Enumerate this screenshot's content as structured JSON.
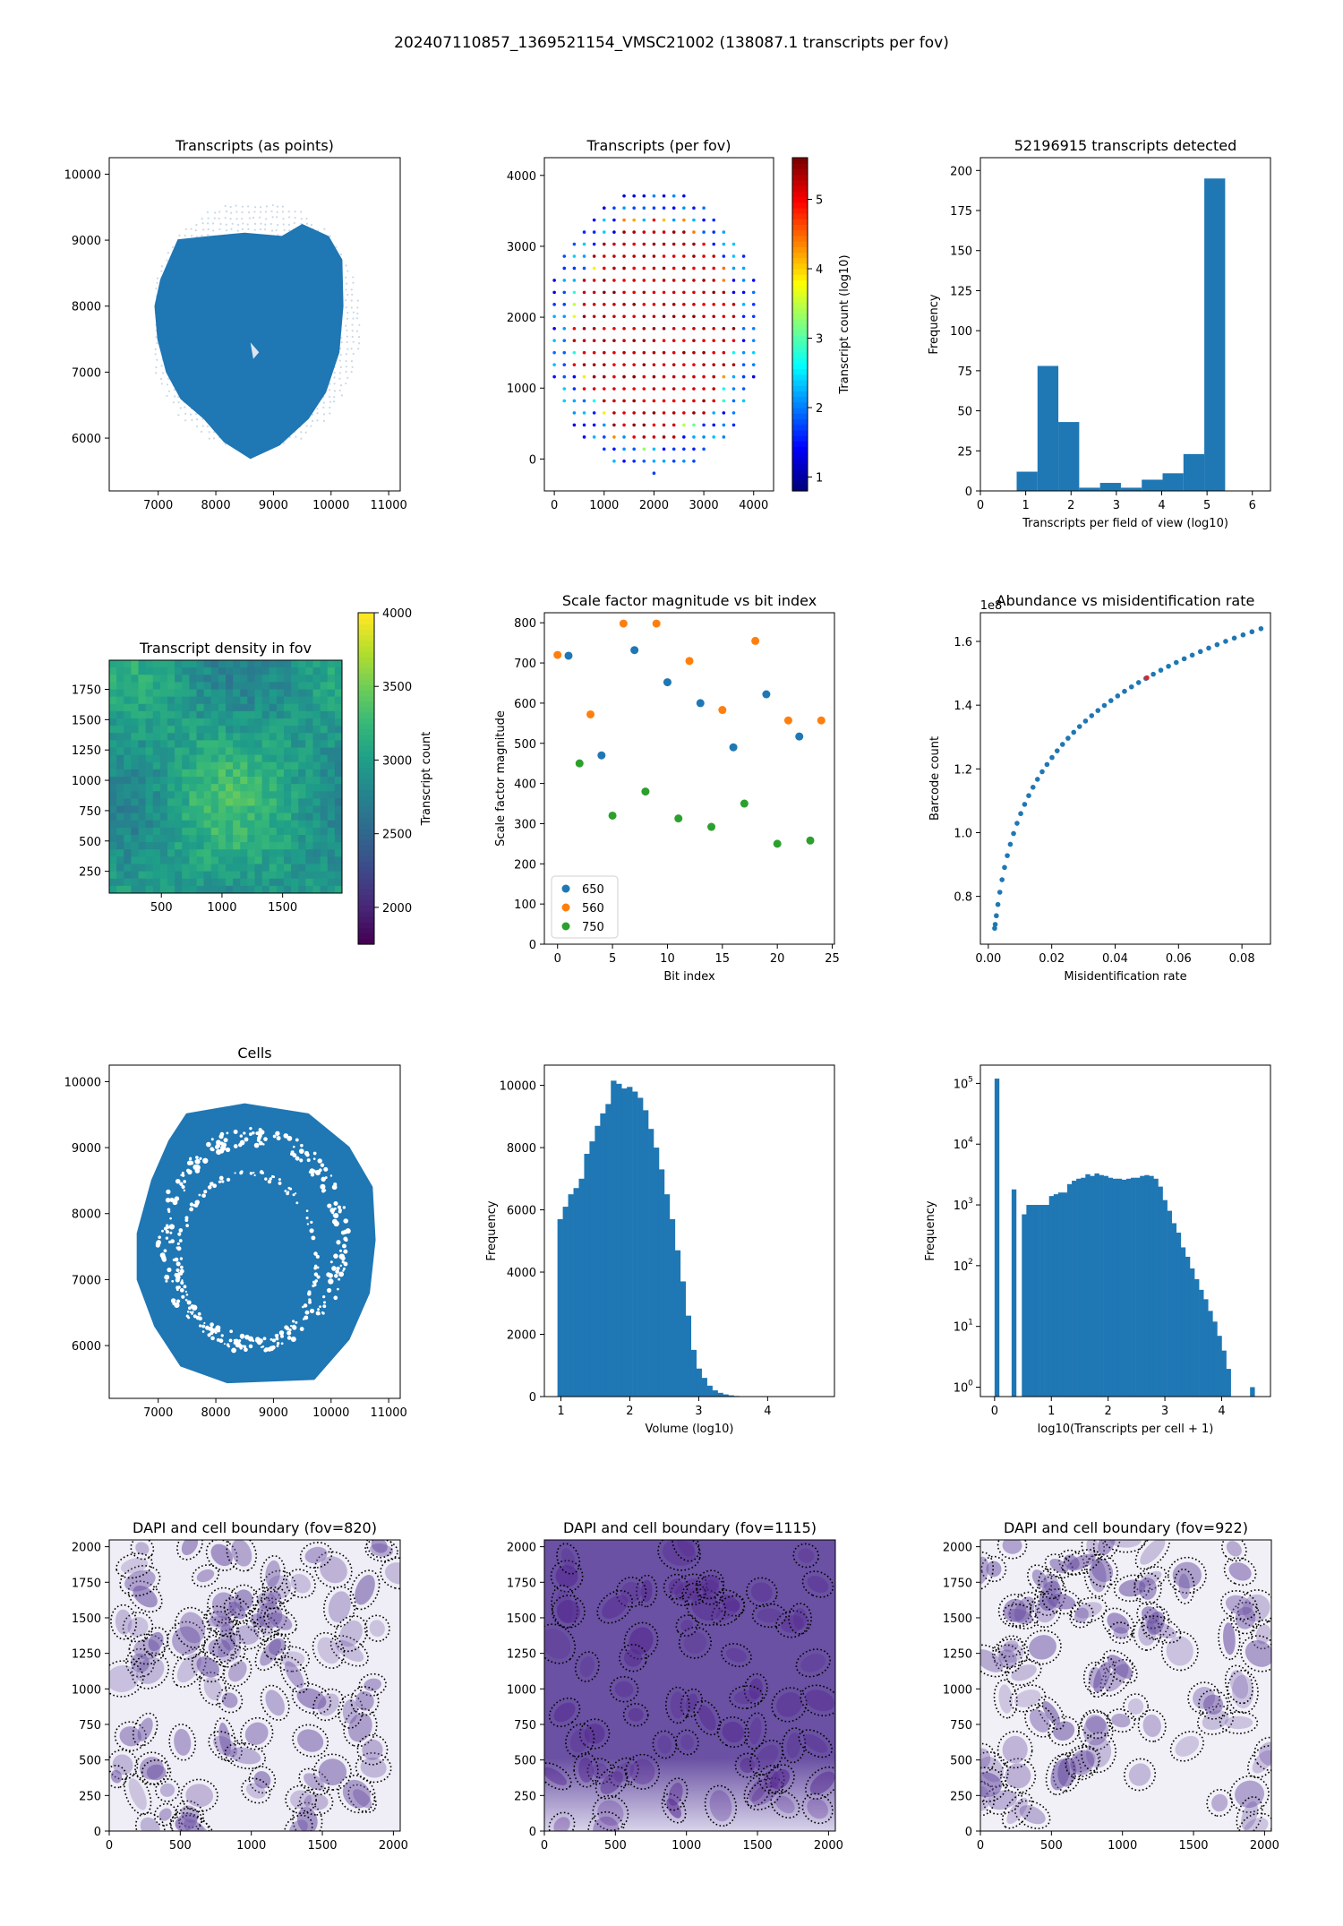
{
  "page": {
    "suptitle": "202407110857_1369521154_VMSC21002 (138087.1 transcripts per fov)"
  },
  "colors": {
    "blue": "#1f77b4",
    "orange": "#ff7f0e",
    "green": "#2ca02c"
  },
  "chart_data": [
    {
      "id": "transcripts-points",
      "type": "scatter",
      "title": "Transcripts (as points)",
      "xlim": [
        6150,
        11200
      ],
      "ylim": [
        5200,
        10250
      ],
      "xticks": [
        7000,
        8000,
        9000,
        10000,
        11000
      ],
      "yticks": [
        6000,
        7000,
        8000,
        9000,
        10000
      ],
      "tissue_outline": [
        [
          7350,
          9000
        ],
        [
          7900,
          9050
        ],
        [
          8500,
          9100
        ],
        [
          9150,
          9050
        ],
        [
          9500,
          9230
        ],
        [
          9950,
          9050
        ],
        [
          10180,
          8700
        ],
        [
          10200,
          8000
        ],
        [
          10130,
          7300
        ],
        [
          9900,
          6700
        ],
        [
          9600,
          6300
        ],
        [
          9100,
          5900
        ],
        [
          8600,
          5700
        ],
        [
          8150,
          5950
        ],
        [
          7800,
          6300
        ],
        [
          7400,
          6600
        ],
        [
          7150,
          7000
        ],
        [
          7000,
          7500
        ],
        [
          6950,
          8000
        ],
        [
          7050,
          8400
        ]
      ],
      "fov_grid_extent": {
        "x": [
          6950,
          10450
        ],
        "y": [
          5900,
          9550
        ]
      }
    },
    {
      "id": "transcripts-per-fov",
      "type": "scatter",
      "title": "Transcripts (per fov)",
      "xlim": [
        -200,
        4400
      ],
      "ylim": [
        -450,
        4250
      ],
      "xticks": [
        0,
        1000,
        2000,
        3000,
        4000
      ],
      "yticks": [
        0,
        1000,
        2000,
        3000,
        4000
      ],
      "colorbar": {
        "label": "Transcript count (log10)",
        "range": [
          0.8,
          5.6
        ],
        "ticks": [
          1,
          2,
          3,
          4,
          5
        ],
        "colormap": "jet"
      },
      "grid_step": 200,
      "center_x": 2000,
      "center_y": 1800,
      "radius_x": 2150,
      "radius_y": 2000,
      "tissue_level": 5.3,
      "background_level": 1.2
    },
    {
      "id": "transcripts-histogram",
      "type": "bar",
      "title": "52196915 transcripts detected",
      "xlabel": "Transcripts per field of view (log10)",
      "ylabel": "Frequency",
      "xlim": [
        0,
        6.4
      ],
      "ylim": [
        0,
        208
      ],
      "xticks": [
        0,
        1,
        2,
        3,
        4,
        5,
        6
      ],
      "yticks": [
        0,
        25,
        50,
        75,
        100,
        125,
        150,
        175,
        200
      ],
      "bin_edges": [
        0.8,
        1.26,
        1.72,
        2.18,
        2.64,
        3.1,
        3.56,
        4.02,
        4.48,
        4.94,
        5.4
      ],
      "values": [
        12,
        78,
        43,
        2,
        5,
        2,
        7,
        11,
        23,
        195
      ]
    },
    {
      "id": "transcript-density",
      "type": "heatmap",
      "title": "Transcript density in fov",
      "xlim": [
        70,
        1990
      ],
      "ylim": [
        70,
        1990
      ],
      "xticks": [
        500,
        1000,
        1500
      ],
      "yticks": [
        250,
        500,
        750,
        1000,
        1250,
        1500,
        1750
      ],
      "colorbar": {
        "label": "Transcript count",
        "range": [
          1750,
          4000
        ],
        "ticks": [
          2000,
          2500,
          3000,
          3500,
          4000
        ],
        "colormap": "viridis"
      }
    },
    {
      "id": "scale-factor",
      "type": "scatter",
      "title": "Scale factor magnitude vs bit index",
      "xlabel": "Bit index",
      "ylabel": "Scale factor magnitude",
      "xlim": [
        -1.2,
        25.2
      ],
      "ylim": [
        0,
        825
      ],
      "xticks": [
        0,
        5,
        10,
        15,
        20,
        25
      ],
      "yticks": [
        0,
        100,
        200,
        300,
        400,
        500,
        600,
        700,
        800
      ],
      "legend_position": "lower-left",
      "series": [
        {
          "name": "650",
          "color": "#1f77b4",
          "points": [
            [
              1,
              718
            ],
            [
              4,
              470
            ],
            [
              7,
              732
            ],
            [
              10,
              652
            ],
            [
              13,
              600
            ],
            [
              16,
              490
            ],
            [
              19,
              622
            ],
            [
              22,
              517
            ]
          ]
        },
        {
          "name": "560",
          "color": "#ff7f0e",
          "points": [
            [
              0,
              720
            ],
            [
              3,
              572
            ],
            [
              6,
              798
            ],
            [
              9,
              798
            ],
            [
              12,
              705
            ],
            [
              15,
              583
            ],
            [
              18,
              755
            ],
            [
              21,
              557
            ],
            [
              24,
              557
            ]
          ]
        },
        {
          "name": "750",
          "color": "#2ca02c",
          "points": [
            [
              2,
              450
            ],
            [
              5,
              320
            ],
            [
              8,
              380
            ],
            [
              11,
              313
            ],
            [
              14,
              292
            ],
            [
              17,
              350
            ],
            [
              20,
              250
            ],
            [
              23,
              258
            ]
          ]
        }
      ]
    },
    {
      "id": "abundance-misid",
      "type": "scatter",
      "title": "Abundance vs misidentification rate",
      "xlabel": "Misidentification rate",
      "ylabel": "Barcode count",
      "offset_label": "1e8",
      "xlim": [
        -0.0025,
        0.089
      ],
      "ylim": [
        0.65,
        1.69
      ],
      "xticks": [
        0.0,
        0.02,
        0.04,
        0.06,
        0.08
      ],
      "xtick_labels": [
        "0.00",
        "0.02",
        "0.04",
        "0.06",
        "0.08"
      ],
      "yticks": [
        0.8,
        1.0,
        1.2,
        1.4,
        1.6
      ],
      "ytick_labels": [
        "0.8",
        "1.0",
        "1.2",
        "1.4",
        "1.6"
      ],
      "marker_x": 0.05,
      "marker_color": "#d62728",
      "curve": {
        "x_start": 0.002,
        "x_end": 0.086,
        "n": 48,
        "y_at_start": 0.7,
        "y_at_end": 1.64
      }
    },
    {
      "id": "cells",
      "type": "scatter",
      "title": "Cells",
      "xlim": [
        6150,
        11200
      ],
      "ylim": [
        5200,
        10250
      ],
      "xticks": [
        7000,
        8000,
        9000,
        10000,
        11000
      ],
      "yticks": [
        6000,
        7000,
        8000,
        9000,
        10000
      ]
    },
    {
      "id": "volume-histogram",
      "type": "bar",
      "xlabel": "Volume (log10)",
      "ylabel": "Frequency",
      "xlim": [
        0.76,
        4.97
      ],
      "ylim": [
        0,
        10650
      ],
      "xticks": [
        1,
        2,
        3,
        4
      ],
      "yticks": [
        0,
        2000,
        4000,
        6000,
        8000,
        10000
      ],
      "bin_start": 0.95,
      "bin_width": 0.0775,
      "values": [
        5700,
        6100,
        6500,
        6700,
        7000,
        7800,
        8200,
        8700,
        9100,
        9400,
        10150,
        10050,
        9900,
        9950,
        9800,
        9600,
        9200,
        8600,
        8000,
        7300,
        6500,
        5700,
        4700,
        3700,
        2600,
        1500,
        900,
        600,
        350,
        200,
        120,
        70,
        40,
        20,
        10,
        5
      ]
    },
    {
      "id": "transcripts-per-cell",
      "type": "bar",
      "xlabel": "log10(Transcripts per cell + 1)",
      "ylabel": "Frequency",
      "y_scale": "log",
      "xlim": [
        -0.25,
        4.86
      ],
      "ylim": [
        0.7,
        200000
      ],
      "xticks": [
        0,
        1,
        2,
        3,
        4
      ],
      "yticks": [
        1,
        10,
        100,
        1000,
        10000,
        100000
      ],
      "bars": [
        [
          0.0,
          0.08,
          120000
        ],
        [
          0.3,
          0.38,
          1800
        ],
        [
          0.48,
          0.56,
          700
        ],
        [
          0.56,
          0.64,
          1000
        ],
        [
          0.64,
          0.72,
          1000
        ],
        [
          0.72,
          0.8,
          1000
        ],
        [
          0.8,
          0.88,
          1000
        ],
        [
          0.88,
          0.96,
          1000
        ],
        [
          0.96,
          1.04,
          1400
        ],
        [
          1.04,
          1.12,
          1500
        ],
        [
          1.12,
          1.2,
          1600
        ],
        [
          1.2,
          1.28,
          1600
        ],
        [
          1.28,
          1.36,
          2200
        ],
        [
          1.36,
          1.44,
          2500
        ],
        [
          1.44,
          1.52,
          2700
        ],
        [
          1.52,
          1.6,
          2800
        ],
        [
          1.6,
          1.68,
          3200
        ],
        [
          1.68,
          1.76,
          3000
        ],
        [
          1.76,
          1.84,
          3300
        ],
        [
          1.84,
          1.92,
          3100
        ],
        [
          1.92,
          2.0,
          3000
        ],
        [
          2.0,
          2.08,
          2800
        ],
        [
          2.08,
          2.16,
          2700
        ],
        [
          2.16,
          2.24,
          2700
        ],
        [
          2.24,
          2.32,
          2600
        ],
        [
          2.32,
          2.4,
          2700
        ],
        [
          2.4,
          2.48,
          2800
        ],
        [
          2.48,
          2.56,
          2800
        ],
        [
          2.56,
          2.64,
          3000
        ],
        [
          2.64,
          2.72,
          3100
        ],
        [
          2.72,
          2.8,
          3000
        ],
        [
          2.8,
          2.88,
          2700
        ],
        [
          2.88,
          2.96,
          2000
        ],
        [
          2.96,
          3.04,
          1200
        ],
        [
          3.04,
          3.12,
          800
        ],
        [
          3.12,
          3.2,
          500
        ],
        [
          3.2,
          3.28,
          350
        ],
        [
          3.28,
          3.36,
          200
        ],
        [
          3.36,
          3.44,
          140
        ],
        [
          3.44,
          3.52,
          90
        ],
        [
          3.52,
          3.6,
          60
        ],
        [
          3.6,
          3.68,
          40
        ],
        [
          3.68,
          3.76,
          28
        ],
        [
          3.76,
          3.84,
          18
        ],
        [
          3.84,
          3.92,
          12
        ],
        [
          3.92,
          4.0,
          7
        ],
        [
          4.0,
          4.08,
          4
        ],
        [
          4.08,
          4.16,
          2
        ],
        [
          4.5,
          4.58,
          1
        ]
      ]
    },
    {
      "id": "dapi-820",
      "type": "heatmap",
      "title": "DAPI and cell boundary (fov=820)",
      "xlim": [
        0,
        2048
      ],
      "ylim": [
        0,
        2048
      ],
      "xticks": [
        0,
        500,
        1000,
        1500,
        2000
      ],
      "yticks": [
        0,
        250,
        500,
        750,
        1000,
        1250,
        1500,
        1750,
        2000
      ],
      "background": "#efedf5",
      "nucleus_color": "#6a51a3",
      "n_cells": 95
    },
    {
      "id": "dapi-1115",
      "type": "heatmap",
      "title": "DAPI and cell boundary (fov=1115)",
      "xlim": [
        0,
        2048
      ],
      "ylim": [
        0,
        2048
      ],
      "xticks": [
        0,
        500,
        1000,
        1500,
        2000
      ],
      "yticks": [
        0,
        250,
        500,
        750,
        1000,
        1250,
        1500,
        1750,
        2000
      ],
      "background": "#6a51a3",
      "nucleus_color": "#54278f",
      "n_cells": 70
    },
    {
      "id": "dapi-922",
      "type": "heatmap",
      "title": "DAPI and cell boundary (fov=922)",
      "xlim": [
        0,
        2048
      ],
      "ylim": [
        0,
        2048
      ],
      "xticks": [
        0,
        500,
        1000,
        1500,
        2000
      ],
      "yticks": [
        0,
        250,
        500,
        750,
        1000,
        1250,
        1500,
        1750,
        2000
      ],
      "background": "#f2f0f7",
      "nucleus_color": "#6a51a3",
      "n_cells": 90
    }
  ]
}
